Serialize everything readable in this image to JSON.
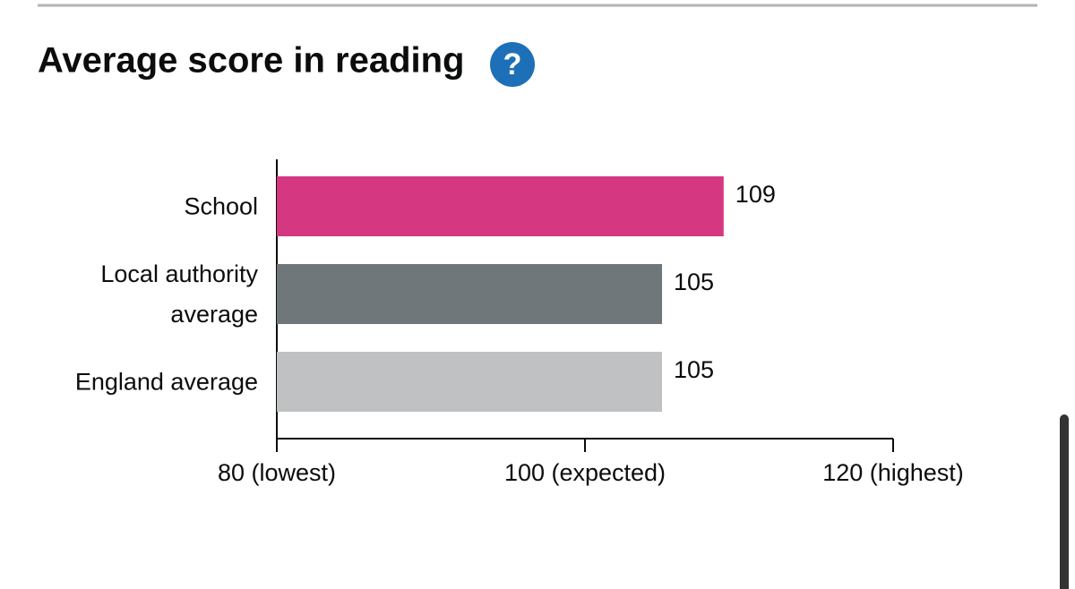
{
  "help_icon_label": "?",
  "chart_data": {
    "type": "bar",
    "orientation": "horizontal",
    "title": "Average score in reading",
    "categories": [
      "School",
      "Local authority average",
      "England average"
    ],
    "values": [
      109,
      105,
      105
    ],
    "colors": [
      "#d53880",
      "#6f777b",
      "#bfc1c3"
    ],
    "xlim": [
      80,
      120
    ],
    "xticks": [
      {
        "value": 80,
        "label": "80 (lowest)"
      },
      {
        "value": 100,
        "label": "100 (expected)"
      },
      {
        "value": 120,
        "label": "120 (highest)"
      }
    ]
  }
}
